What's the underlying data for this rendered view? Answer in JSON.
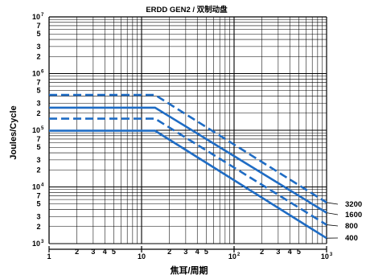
{
  "chart_data": {
    "type": "line",
    "title": "ERDD GEN2 / 双制动盘",
    "xlabel": "焦耳/周期",
    "ylabel": "Joules/Cycle",
    "xscale": "log",
    "yscale": "log",
    "xlim": [
      1,
      1000
    ],
    "ylim": [
      1000,
      10000000
    ],
    "grid": true,
    "x_major_ticks": [
      {
        "value": 1,
        "base": "1",
        "exp": ""
      },
      {
        "value": 10,
        "base": "10",
        "exp": ""
      },
      {
        "value": 100,
        "base": "10",
        "exp": "2"
      },
      {
        "value": 1000,
        "base": "10",
        "exp": "3"
      }
    ],
    "x_minor_ticks": [
      {
        "value": 2,
        "label": "2"
      },
      {
        "value": 3,
        "label": "3"
      },
      {
        "value": 4,
        "label": "4"
      },
      {
        "value": 5,
        "label": "5"
      },
      {
        "value": 20,
        "label": "2"
      },
      {
        "value": 30,
        "label": "3"
      },
      {
        "value": 40,
        "label": "4"
      },
      {
        "value": 50,
        "label": "5"
      },
      {
        "value": 200,
        "label": "2"
      },
      {
        "value": 300,
        "label": "3"
      },
      {
        "value": 400,
        "label": "4"
      },
      {
        "value": 500,
        "label": "5"
      }
    ],
    "y_major_ticks": [
      {
        "value": 1000,
        "base": "10",
        "exp": "3"
      },
      {
        "value": 10000,
        "base": "10",
        "exp": "4"
      },
      {
        "value": 100000,
        "base": "10",
        "exp": "5"
      },
      {
        "value": 1000000,
        "base": "10",
        "exp": "6"
      },
      {
        "value": 10000000,
        "base": "10",
        "exp": "7"
      }
    ],
    "y_minor_ticks": [
      {
        "value": 2000,
        "label": "2"
      },
      {
        "value": 3000,
        "label": "3"
      },
      {
        "value": 5000,
        "label": "5"
      },
      {
        "value": 7000,
        "label": "7"
      },
      {
        "value": 20000,
        "label": "2"
      },
      {
        "value": 30000,
        "label": "3"
      },
      {
        "value": 50000,
        "label": "5"
      },
      {
        "value": 70000,
        "label": "7"
      },
      {
        "value": 200000,
        "label": "2"
      },
      {
        "value": 300000,
        "label": "3"
      },
      {
        "value": 500000,
        "label": "5"
      },
      {
        "value": 700000,
        "label": "7"
      },
      {
        "value": 2000000,
        "label": "2"
      },
      {
        "value": 3000000,
        "label": "3"
      },
      {
        "value": 5000000,
        "label": "5"
      },
      {
        "value": 7000000,
        "label": "7"
      }
    ],
    "line_color": "#1f6cc4",
    "series": [
      {
        "label": "3200",
        "style": "dashed",
        "x": [
          1,
          14,
          1000
        ],
        "y": [
          420000,
          420000,
          5300
        ]
      },
      {
        "label": "1600",
        "style": "solid",
        "x": [
          1,
          14,
          1000
        ],
        "y": [
          250000,
          250000,
          3500
        ]
      },
      {
        "label": "800",
        "style": "dashed",
        "x": [
          1,
          14,
          1000
        ],
        "y": [
          160000,
          160000,
          2150
        ]
      },
      {
        "label": "400",
        "style": "solid",
        "x": [
          1,
          14,
          1000
        ],
        "y": [
          98000,
          98000,
          1250
        ]
      }
    ]
  }
}
